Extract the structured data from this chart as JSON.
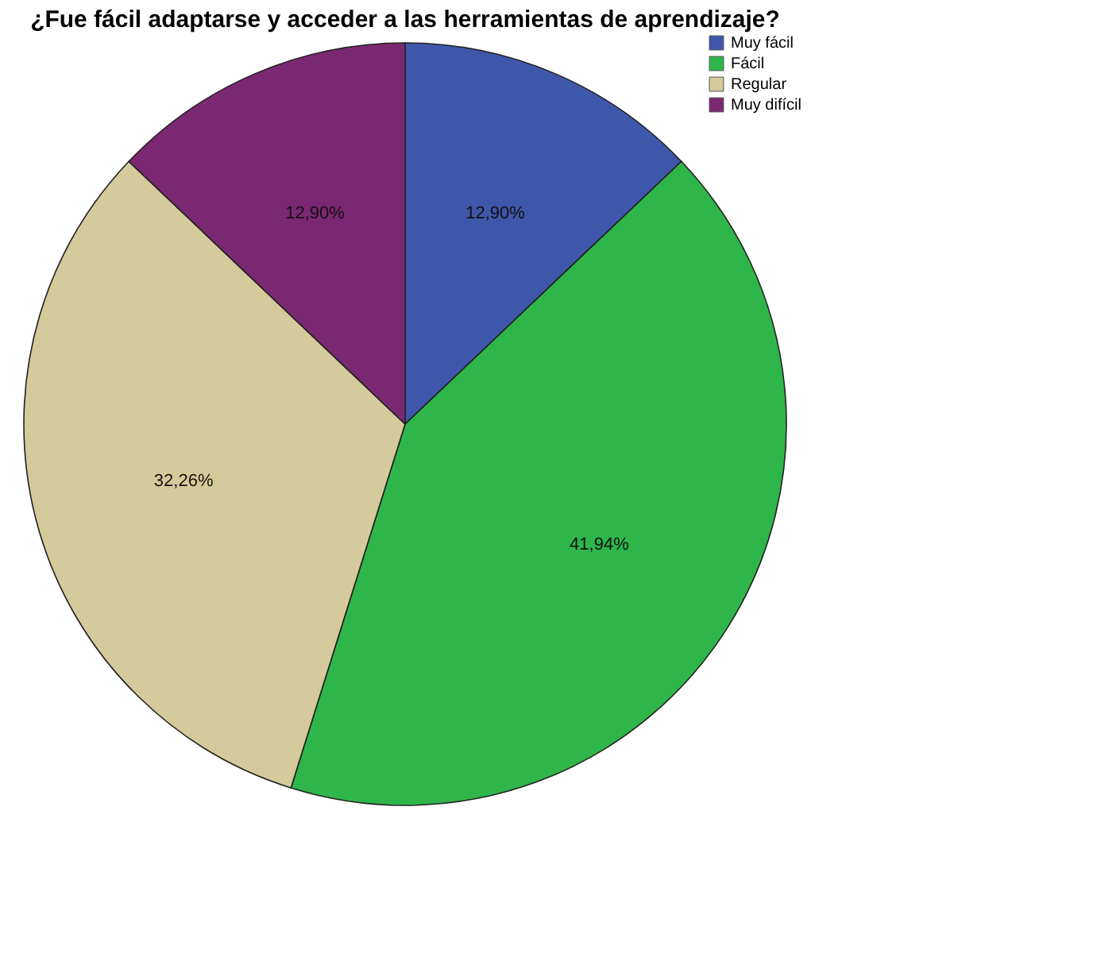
{
  "chart_data": {
    "type": "pie",
    "title": "¿Fue fácil adaptarse y acceder a las herramientas de aprendizaje?",
    "categories": [
      "Muy fácil",
      "Fácil",
      "Regular",
      "Muy difícil"
    ],
    "values": [
      12.9,
      41.94,
      32.26,
      12.9
    ],
    "colors": [
      "#3f57aa",
      "#2fb64a",
      "#d5ca9b",
      "#7b2872"
    ],
    "value_labels": [
      "12,90%",
      "41,94%",
      "32,26%",
      "12,90%"
    ],
    "legend": "top right"
  }
}
